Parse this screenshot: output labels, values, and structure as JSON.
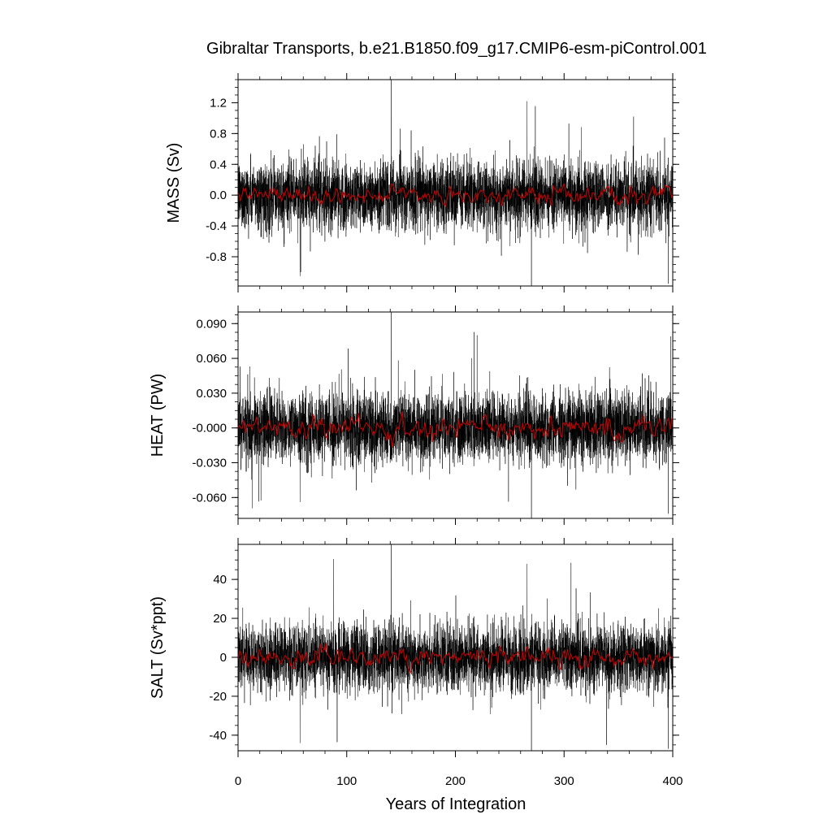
{
  "title": "Gibraltar Transports, b.e21.B1850.f09_g17.CMIP6-esm-piControl.001",
  "xlabel": "Years of Integration",
  "colors": {
    "raw_series": "#000000",
    "smoothed_series": "#cc0000",
    "frame": "#000000"
  },
  "chart_data": [
    {
      "type": "line",
      "ylabel": "MASS (Sv)",
      "xlim": [
        0,
        400
      ],
      "ylim": [
        -1.18,
        1.5
      ],
      "yticks": [
        -0.8,
        -0.4,
        0.0,
        0.4,
        0.8,
        1.2
      ],
      "ytick_labels": [
        "-0.8",
        "-0.4",
        "0.0",
        "0.4",
        "0.8",
        "1.2"
      ],
      "noise_std": 0.22,
      "smooth_amplitude": 0.05,
      "spikes": [
        {
          "x": 141,
          "y": 1.5
        },
        {
          "x": 266,
          "y": 1.22
        },
        {
          "x": 270,
          "y": -1.18
        },
        {
          "x": 396,
          "y": -1.15
        },
        {
          "x": 57,
          "y": -1.05
        },
        {
          "x": 364,
          "y": 1.02
        }
      ],
      "series": [
        {
          "values": "monthly transport (noisy)"
        },
        {
          "values": "annual mean (smoothed)"
        }
      ]
    },
    {
      "type": "line",
      "ylabel": "HEAT (PW)",
      "xlim": [
        0,
        400
      ],
      "ylim": [
        -0.078,
        0.1
      ],
      "yticks": [
        -0.06,
        -0.03,
        0.0,
        0.03,
        0.06,
        0.09
      ],
      "ytick_labels": [
        "-0.060",
        "-0.030",
        "-0.000",
        "0.030",
        "0.060",
        "0.090"
      ],
      "noise_std": 0.015,
      "smooth_amplitude": 0.004,
      "spikes": [
        {
          "x": 141,
          "y": 0.1
        },
        {
          "x": 270,
          "y": -0.078
        },
        {
          "x": 396,
          "y": -0.074
        },
        {
          "x": 398,
          "y": 0.079
        },
        {
          "x": 57,
          "y": -0.064
        },
        {
          "x": 220,
          "y": 0.08
        }
      ]
    },
    {
      "type": "line",
      "ylabel": "SALT (Sv*ppt)",
      "xlim": [
        0,
        400
      ],
      "ylim": [
        -48,
        58
      ],
      "yticks": [
        -40,
        -20,
        0,
        20,
        40
      ],
      "ytick_labels": [
        "-40",
        "-20",
        "0",
        "20",
        "40"
      ],
      "noise_std": 8.5,
      "smooth_amplitude": 2.0,
      "spikes": [
        {
          "x": 141,
          "y": 58
        },
        {
          "x": 266,
          "y": 48
        },
        {
          "x": 270,
          "y": -48
        },
        {
          "x": 396,
          "y": -47
        },
        {
          "x": 57,
          "y": -44
        },
        {
          "x": 339,
          "y": -45
        }
      ]
    }
  ],
  "xticks": [
    0,
    100,
    200,
    300,
    400
  ],
  "xtick_labels": [
    "0",
    "100",
    "200",
    "300",
    "400"
  ]
}
